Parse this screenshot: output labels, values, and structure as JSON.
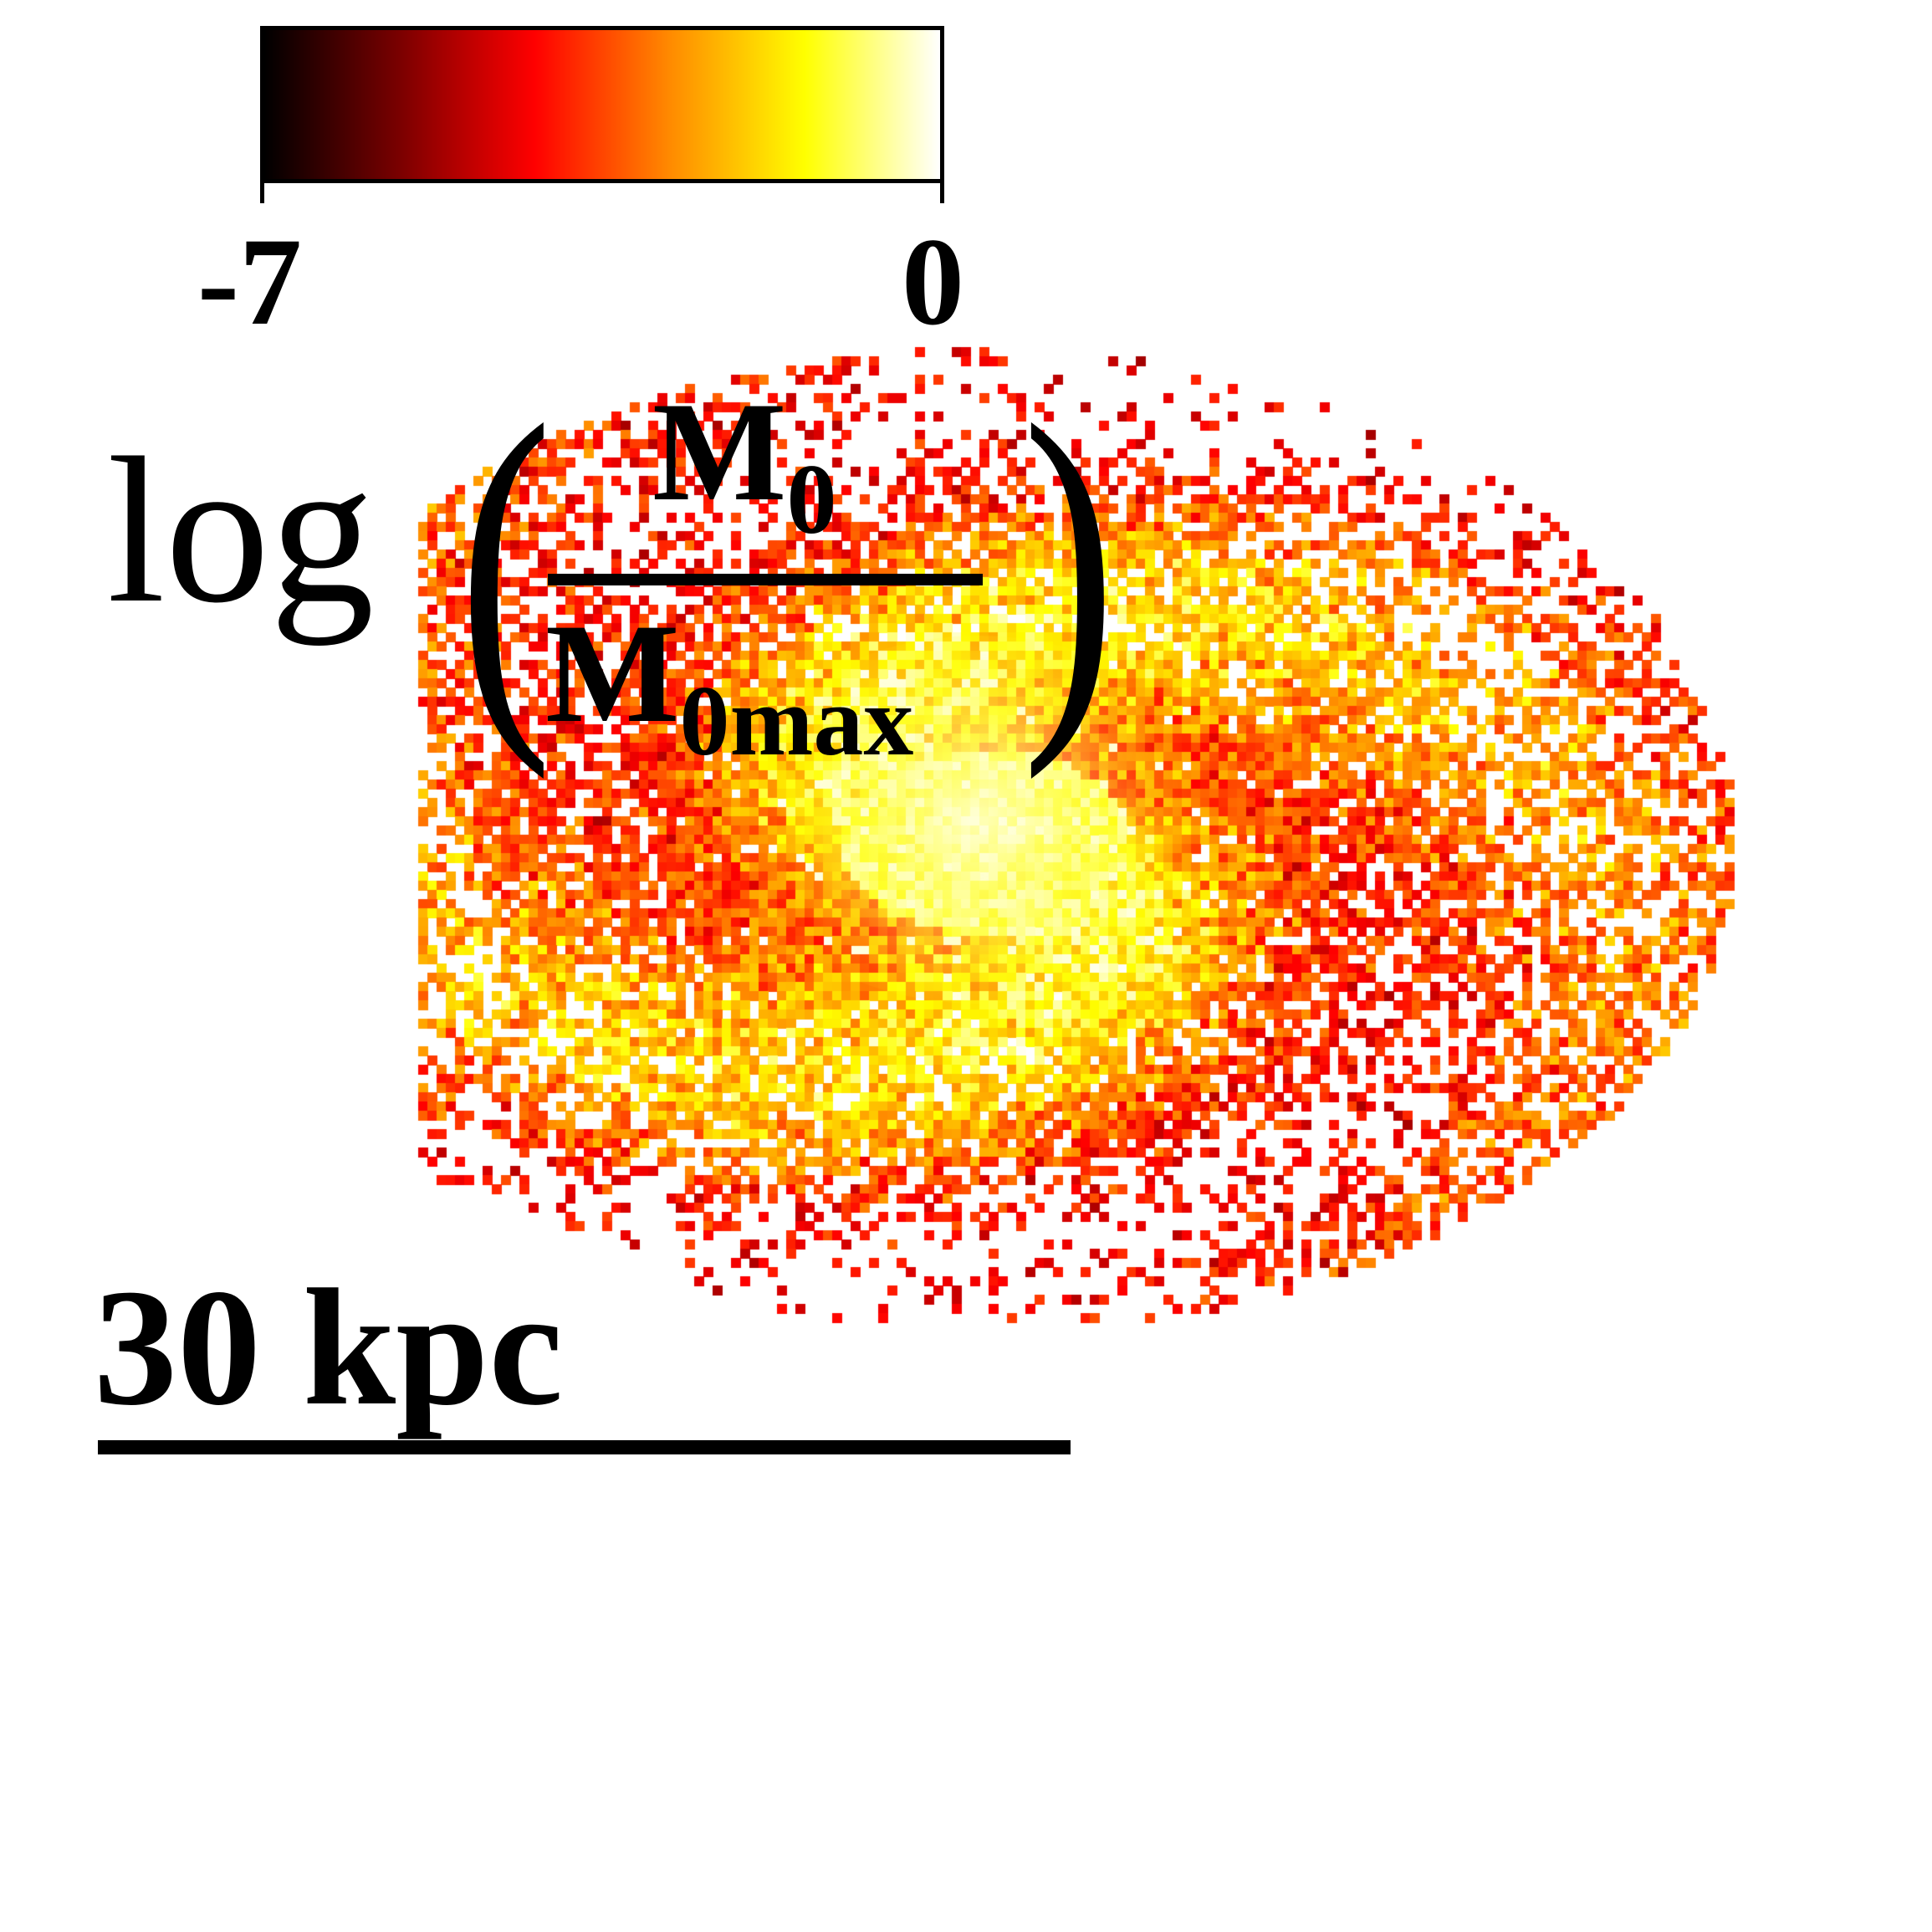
{
  "colorbar": {
    "min_label": "-7",
    "max_label": "0",
    "colors": [
      "#000000",
      "#7a0000",
      "#ff0000",
      "#ff8a00",
      "#ffff00",
      "#ffffff"
    ]
  },
  "label": {
    "log": "log",
    "left_paren": "(",
    "right_paren": ")",
    "numerator_main": "M",
    "numerator_sub": "0",
    "denominator_main": "M",
    "denominator_sub": "0max"
  },
  "scale": {
    "text": "30 kpc"
  }
}
